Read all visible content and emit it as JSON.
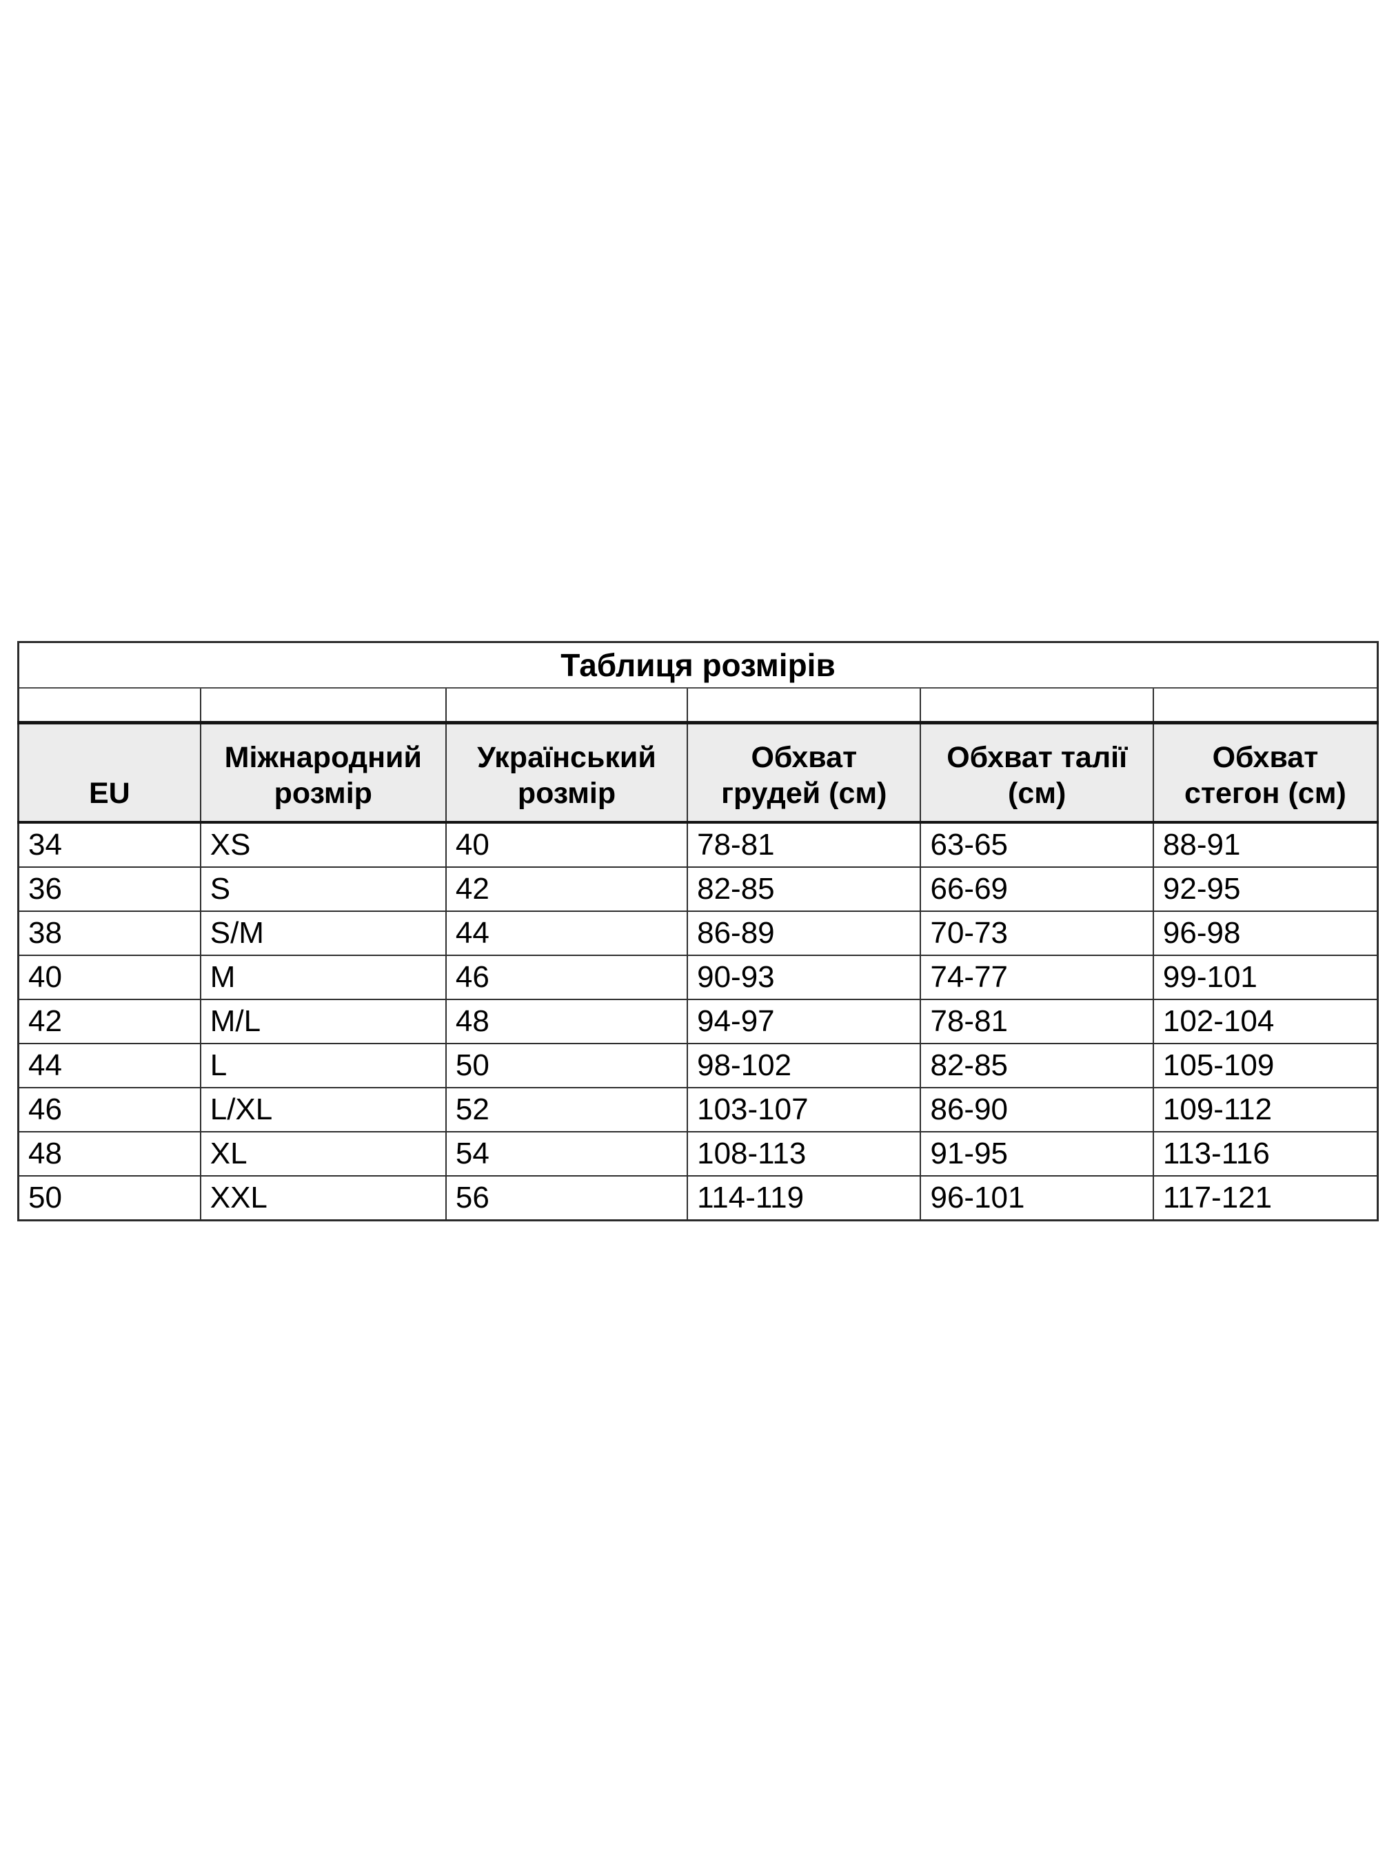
{
  "table": {
    "title": "Таблиця розмірів",
    "headers": [
      "EU",
      "Міжнародний\nрозмір",
      "Український\nрозмір",
      "Обхват\nгрудей (см)",
      "Обхват талії\n(см)",
      "Обхват\nстегон (см)"
    ],
    "rows": [
      [
        "34",
        "XS",
        "40",
        "78-81",
        "63-65",
        "88-91"
      ],
      [
        "36",
        "S",
        "42",
        "82-85",
        "66-69",
        "92-95"
      ],
      [
        "38",
        "S/M",
        "44",
        "86-89",
        "70-73",
        "96-98"
      ],
      [
        "40",
        "M",
        "46",
        "90-93",
        "74-77",
        "99-101"
      ],
      [
        "42",
        "M/L",
        "48",
        "94-97",
        "78-81",
        "102-104"
      ],
      [
        "44",
        "L",
        "50",
        "98-102",
        "82-85",
        "105-109"
      ],
      [
        "46",
        "L/XL",
        "52",
        "103-107",
        "86-90",
        "109-112"
      ],
      [
        "48",
        "XL",
        "54",
        "108-113",
        "91-95",
        "113-116"
      ],
      [
        "50",
        "XXL",
        "56",
        "114-119",
        "96-101",
        "117-121"
      ]
    ]
  },
  "colors": {
    "background": "#ffffff",
    "header_background": "#ececec",
    "border": "#2e2e2e",
    "text": "#000000"
  },
  "chart_data": {
    "type": "table",
    "title": "Таблиця розмірів",
    "columns": [
      "EU",
      "Міжнародний розмір",
      "Український розмір",
      "Обхват грудей (см)",
      "Обхват талії (см)",
      "Обхват стегон (см)"
    ],
    "rows": [
      [
        "34",
        "XS",
        "40",
        "78-81",
        "63-65",
        "88-91"
      ],
      [
        "36",
        "S",
        "42",
        "82-85",
        "66-69",
        "92-95"
      ],
      [
        "38",
        "S/M",
        "44",
        "86-89",
        "70-73",
        "96-98"
      ],
      [
        "40",
        "M",
        "46",
        "90-93",
        "74-77",
        "99-101"
      ],
      [
        "42",
        "M/L",
        "48",
        "94-97",
        "78-81",
        "102-104"
      ],
      [
        "44",
        "L",
        "50",
        "98-102",
        "82-85",
        "105-109"
      ],
      [
        "46",
        "L/XL",
        "52",
        "103-107",
        "86-90",
        "109-112"
      ],
      [
        "48",
        "XL",
        "54",
        "108-113",
        "91-95",
        "113-116"
      ],
      [
        "50",
        "XXL",
        "56",
        "114-119",
        "96-101",
        "117-121"
      ]
    ],
    "layout": {
      "grid": true,
      "title_row_merged": true,
      "header_background": "#ececec",
      "canvas_background": "#ffffff"
    }
  }
}
